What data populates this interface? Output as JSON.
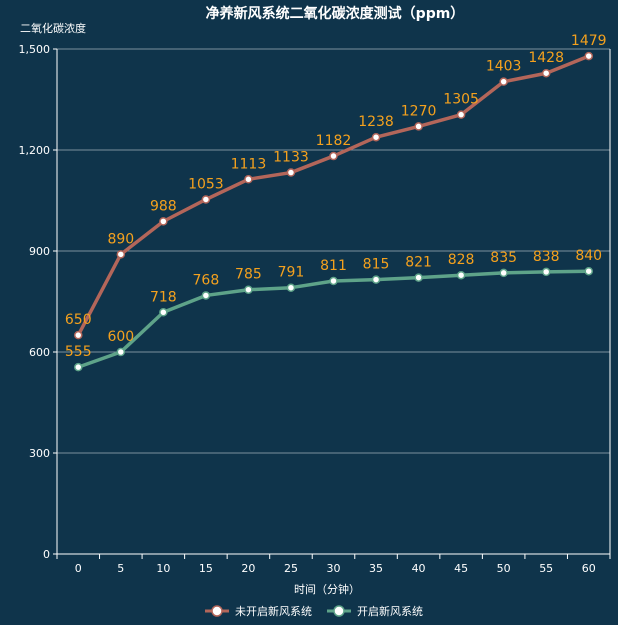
{
  "chart_data": {
    "type": "line",
    "title": "净养新风系统二氧化碳浓度测试（ppm）",
    "ylabel": "二氧化碳浓度",
    "xlabel": "时间（分钟）",
    "categories": [
      "0",
      "5",
      "10",
      "15",
      "20",
      "25",
      "30",
      "35",
      "40",
      "45",
      "50",
      "55",
      "60"
    ],
    "y_ticks": [
      "0",
      "300",
      "600",
      "900",
      "1,200",
      "1,500"
    ],
    "ylim": [
      0,
      1500
    ],
    "grid": true,
    "legend_position": "bottom",
    "series": [
      {
        "name": "未开启新风系统",
        "values": [
          650,
          890,
          988,
          1053,
          1113,
          1133,
          1182,
          1238,
          1270,
          1305,
          1403,
          1428,
          1479
        ],
        "color": "#b3665a"
      },
      {
        "name": "开启新风系统",
        "values": [
          555,
          600,
          718,
          768,
          785,
          791,
          811,
          815,
          821,
          828,
          835,
          838,
          840
        ],
        "color": "#5ea389"
      }
    ],
    "colors": {
      "background": "#0f344b",
      "label": "#f4a11e",
      "text": "#ffffff"
    }
  }
}
